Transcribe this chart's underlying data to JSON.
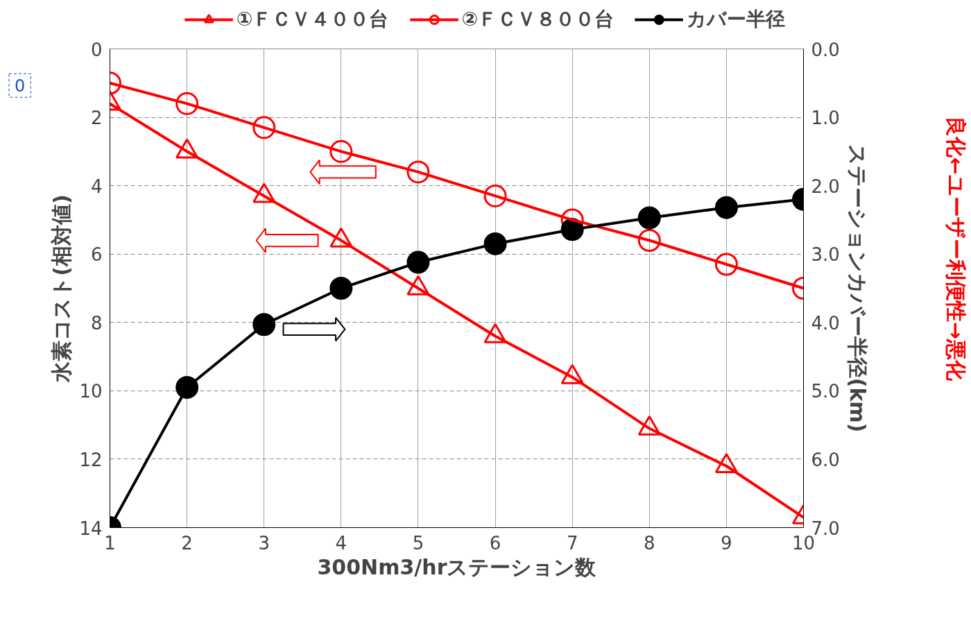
{
  "chart_data": {
    "type": "line",
    "xlabel": "300Nm3/hrステーション数",
    "ylabel": "水素コスト(相対値)",
    "y2label": "ステーションカバー半径(km)",
    "x": [
      1,
      2,
      3,
      4,
      5,
      6,
      7,
      8,
      9,
      10
    ],
    "series": [
      {
        "name": "①ＦＣＶ４００台",
        "color": "#ff0000",
        "marker": "triangle",
        "values": [
          1.6,
          3.0,
          4.3,
          5.6,
          7.0,
          8.4,
          9.6,
          11.1,
          12.2,
          13.7
        ]
      },
      {
        "name": "②ＦＣＶ８００台",
        "color": "#ff0000",
        "marker": "circle",
        "values": [
          1.0,
          1.6,
          2.3,
          3.0,
          3.6,
          4.3,
          5.0,
          5.6,
          6.3,
          7.0
        ]
      },
      {
        "name": "カバー半径",
        "color": "#000000",
        "marker": "circle",
        "axis": "y2",
        "values": [
          7.0,
          4.95,
          4.03,
          3.5,
          3.12,
          2.85,
          2.64,
          2.47,
          2.32,
          2.2
        ]
      }
    ],
    "xlim": [
      1,
      10
    ],
    "xticks": [
      1,
      2,
      3,
      4,
      5,
      6,
      7,
      8,
      9,
      10
    ],
    "ylim": [
      14,
      0
    ],
    "yticks": [
      0,
      2,
      4,
      6,
      8,
      10,
      12,
      14
    ],
    "y2lim": [
      7,
      0
    ],
    "y2ticks": [
      {
        "value": 0,
        "label": "0.0"
      },
      {
        "value": 1,
        "label": "1.0"
      },
      {
        "value": 2,
        "label": "2.0"
      },
      {
        "value": 3,
        "label": "3.0"
      },
      {
        "value": 4,
        "label": "4.0"
      },
      {
        "value": 5,
        "label": "5.0"
      },
      {
        "value": 6,
        "label": "6.0"
      },
      {
        "value": 7,
        "label": "7.0"
      }
    ],
    "annotations": [
      "0",
      "良化←ユーザー利便性→悪化"
    ],
    "grid": true,
    "legend": "top",
    "line_style": "solid"
  }
}
